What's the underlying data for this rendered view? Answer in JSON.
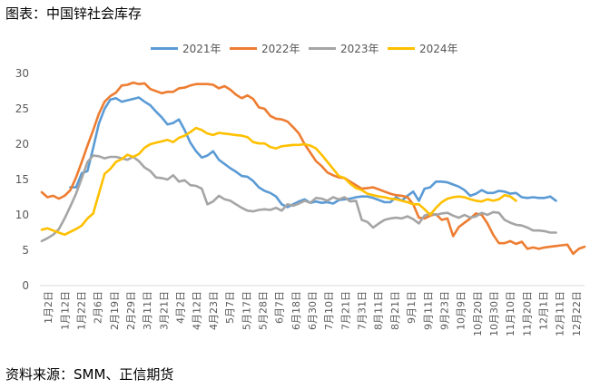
{
  "title": "图表：中国锌社会库存",
  "source": "资料来源：SMM、正信期货",
  "chart_data": {
    "type": "line",
    "title": "图表：中国锌社会库存",
    "xlabel": "",
    "ylabel": "",
    "ylim": [
      0,
      30
    ],
    "yticks": [
      0,
      5,
      10,
      15,
      20,
      25,
      30
    ],
    "grid": false,
    "legend_position": "top",
    "x_tick_labels": [
      "1月2日",
      "1月12日",
      "1月22日",
      "2月6日",
      "2月19日",
      "2月29日",
      "3月11日",
      "3月21日",
      "4月2日",
      "4月12日",
      "4月23日",
      "5月7日",
      "5月17日",
      "5月28日",
      "6月7日",
      "6月18日",
      "6月30日",
      "7月10日",
      "7月21日",
      "7月31日",
      "8月11日",
      "8月21日",
      "9月1日",
      "9月11日",
      "9月23日",
      "10月9日",
      "10月20日",
      "10月30日",
      "11月10日",
      "11月20日",
      "12月1日",
      "12月11日",
      "12月22日"
    ],
    "series": [
      {
        "name": "2021年",
        "color": "#5b9bd5",
        "values": [
          null,
          null,
          null,
          null,
          null,
          13.9,
          13.9,
          15.9,
          16.2,
          19.5,
          22.9,
          25.0,
          26.3,
          26.5,
          26.0,
          26.2,
          26.4,
          26.6,
          26.0,
          25.5,
          24.6,
          23.8,
          22.8,
          23.0,
          23.5,
          22.0,
          20.2,
          19.0,
          18.1,
          18.4,
          19.0,
          17.8,
          17.2,
          16.6,
          16.1,
          15.5,
          15.4,
          14.8,
          13.9,
          13.4,
          13.1,
          12.6,
          11.5,
          11.1,
          11.5,
          11.9,
          12.2,
          11.7,
          11.9,
          11.7,
          11.8,
          11.6,
          12.1,
          12.2,
          12.3,
          12.5,
          12.6,
          12.6,
          12.4,
          12.1,
          11.8,
          11.8,
          12.5,
          12.0,
          12.7,
          13.3,
          12.0,
          13.7,
          13.9,
          14.7,
          14.7,
          14.6,
          14.3,
          14.0,
          13.5,
          12.7,
          13.0,
          13.5,
          13.1,
          13.1,
          13.4,
          13.3,
          13.0,
          13.1,
          12.5,
          12.4,
          12.5,
          12.4,
          12.4,
          12.6,
          12.0
        ]
      },
      {
        "name": "2022年",
        "color": "#ed7d31",
        "values": [
          13.2,
          12.5,
          12.7,
          12.3,
          12.7,
          13.5,
          15.3,
          17.5,
          19.8,
          22.0,
          24.3,
          26.0,
          26.8,
          27.3,
          28.3,
          28.4,
          28.7,
          28.5,
          28.6,
          27.8,
          27.5,
          27.2,
          27.4,
          27.4,
          27.9,
          28.0,
          28.3,
          28.5,
          28.5,
          28.5,
          28.4,
          27.9,
          28.2,
          27.7,
          27.0,
          26.5,
          26.9,
          26.4,
          25.2,
          25.0,
          24.0,
          23.6,
          23.5,
          23.2,
          22.4,
          21.5,
          20.0,
          18.8,
          17.6,
          16.9,
          16.0,
          15.6,
          15.3,
          15.2,
          14.7,
          14.2,
          13.7,
          13.8,
          13.9,
          13.6,
          13.3,
          13.0,
          12.8,
          12.7,
          12.5,
          11.5,
          9.6,
          9.5,
          9.9,
          10.1,
          9.3,
          9.5,
          7.0,
          8.3,
          8.9,
          9.5,
          10.2,
          10.0,
          8.8,
          7.2,
          6.0,
          6.0,
          6.3,
          5.9,
          6.2,
          5.2,
          5.4,
          5.2,
          5.4,
          5.5,
          5.6,
          5.7,
          5.8,
          4.5,
          5.2,
          5.5
        ]
      },
      {
        "name": "2023年",
        "color": "#a5a5a5",
        "values": [
          6.3,
          6.7,
          7.2,
          8.0,
          9.5,
          11.2,
          13.0,
          15.2,
          17.5,
          18.4,
          18.3,
          18.0,
          18.2,
          18.2,
          18.0,
          17.8,
          18.2,
          17.6,
          16.7,
          16.2,
          15.3,
          15.2,
          15.0,
          15.6,
          14.7,
          14.9,
          14.2,
          14.1,
          13.7,
          11.5,
          11.9,
          12.7,
          12.2,
          12.0,
          11.5,
          11.0,
          10.6,
          10.5,
          10.7,
          10.8,
          10.7,
          11.0,
          10.6,
          11.5,
          11.3,
          11.6,
          12.0,
          11.7,
          12.4,
          12.3,
          12.0,
          12.5,
          12.2,
          12.5,
          11.9,
          12.0,
          9.3,
          9.0,
          8.2,
          8.8,
          9.3,
          9.5,
          9.6,
          9.5,
          9.8,
          9.4,
          8.8,
          9.9,
          10.2,
          10.0,
          10.2,
          10.3,
          9.9,
          9.6,
          10.0,
          9.6,
          9.8,
          10.3,
          10.0,
          10.4,
          10.3,
          9.3,
          8.9,
          8.6,
          8.5,
          8.2,
          7.8,
          7.8,
          7.7,
          7.5,
          7.5
        ]
      },
      {
        "name": "2024年",
        "color": "#ffc000",
        "values": [
          7.9,
          8.1,
          7.8,
          7.5,
          7.2,
          7.6,
          8.0,
          8.5,
          9.5,
          10.2,
          13.0,
          15.8,
          16.5,
          17.5,
          17.9,
          18.5,
          18.2,
          18.6,
          19.5,
          20.0,
          20.2,
          20.4,
          20.6,
          20.3,
          20.9,
          21.2,
          21.7,
          22.3,
          22.0,
          21.5,
          21.3,
          21.6,
          21.5,
          21.4,
          21.3,
          21.2,
          21.0,
          20.3,
          20.1,
          20.1,
          19.6,
          19.4,
          19.7,
          19.8,
          19.9,
          19.9,
          20.0,
          19.8,
          19.4,
          18.5,
          17.5,
          16.5,
          15.5,
          15.2,
          14.4,
          13.8,
          13.5,
          13.0,
          12.8,
          12.6,
          12.5,
          12.3,
          12.2,
          12.0,
          11.8,
          11.5,
          11.5,
          10.8,
          10.0,
          11.0,
          11.8,
          12.3,
          12.5,
          12.6,
          12.5,
          12.2,
          12.0,
          11.9,
          12.2,
          12.0,
          12.2,
          12.8,
          12.6,
          12.0
        ]
      }
    ]
  }
}
